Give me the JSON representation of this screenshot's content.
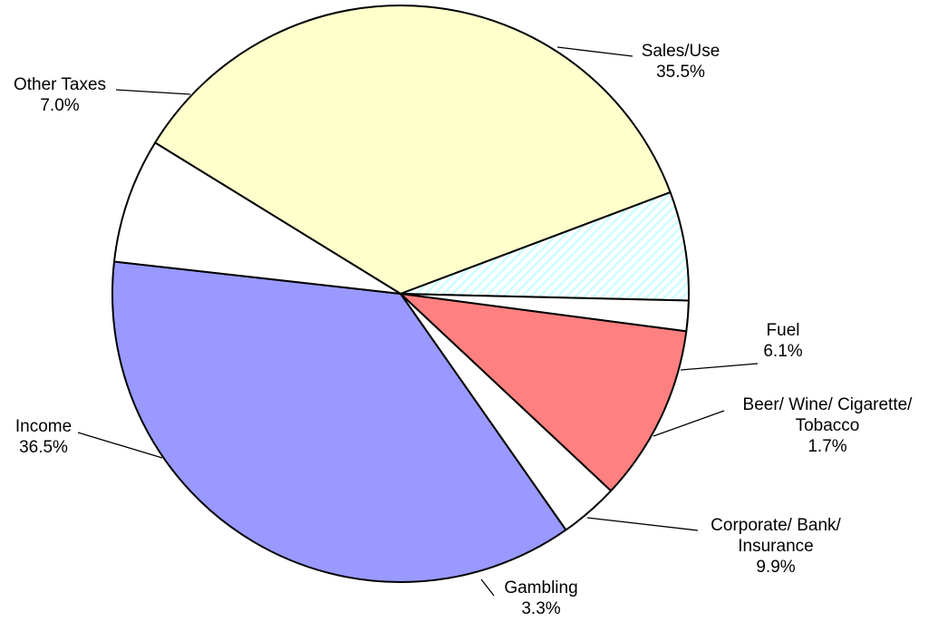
{
  "chart_data": {
    "type": "pie",
    "start_angle_deg": 301.6,
    "direction": "clockwise",
    "slices": [
      {
        "name": "Sales/Use",
        "value": 35.5,
        "value_label": "35.5%",
        "label_lines": [
          "Sales/Use"
        ],
        "color": "#FFFFCC",
        "pattern": "none"
      },
      {
        "name": "Fuel",
        "value": 6.1,
        "value_label": "6.1%",
        "label_lines": [
          "Fuel"
        ],
        "color": "#CCFFFF",
        "pattern": "diagonal-stripes"
      },
      {
        "name": "Beer/ Wine/ Cigarette/ Tobacco",
        "value": 1.7,
        "value_label": "1.7%",
        "label_lines": [
          "Beer/ Wine/ Cigarette/",
          "Tobacco"
        ],
        "color": "#FFFFFF",
        "pattern": "none"
      },
      {
        "name": "Corporate/ Bank/ Insurance",
        "value": 9.9,
        "value_label": "9.9%",
        "label_lines": [
          "Corporate/ Bank/",
          "Insurance"
        ],
        "color": "#FF8080",
        "pattern": "none"
      },
      {
        "name": "Gambling",
        "value": 3.3,
        "value_label": "3.3%",
        "label_lines": [
          "Gambling"
        ],
        "color": "#FFFFFF",
        "pattern": "none"
      },
      {
        "name": "Income",
        "value": 36.5,
        "value_label": "36.5%",
        "label_lines": [
          "Income"
        ],
        "color": "#9999FF",
        "pattern": "none"
      },
      {
        "name": "Other Taxes",
        "value": 7.0,
        "value_label": "7.0%",
        "label_lines": [
          "Other Taxes"
        ],
        "color": "#FFFFFF",
        "pattern": "none"
      }
    ],
    "title": "",
    "legend": "none"
  }
}
